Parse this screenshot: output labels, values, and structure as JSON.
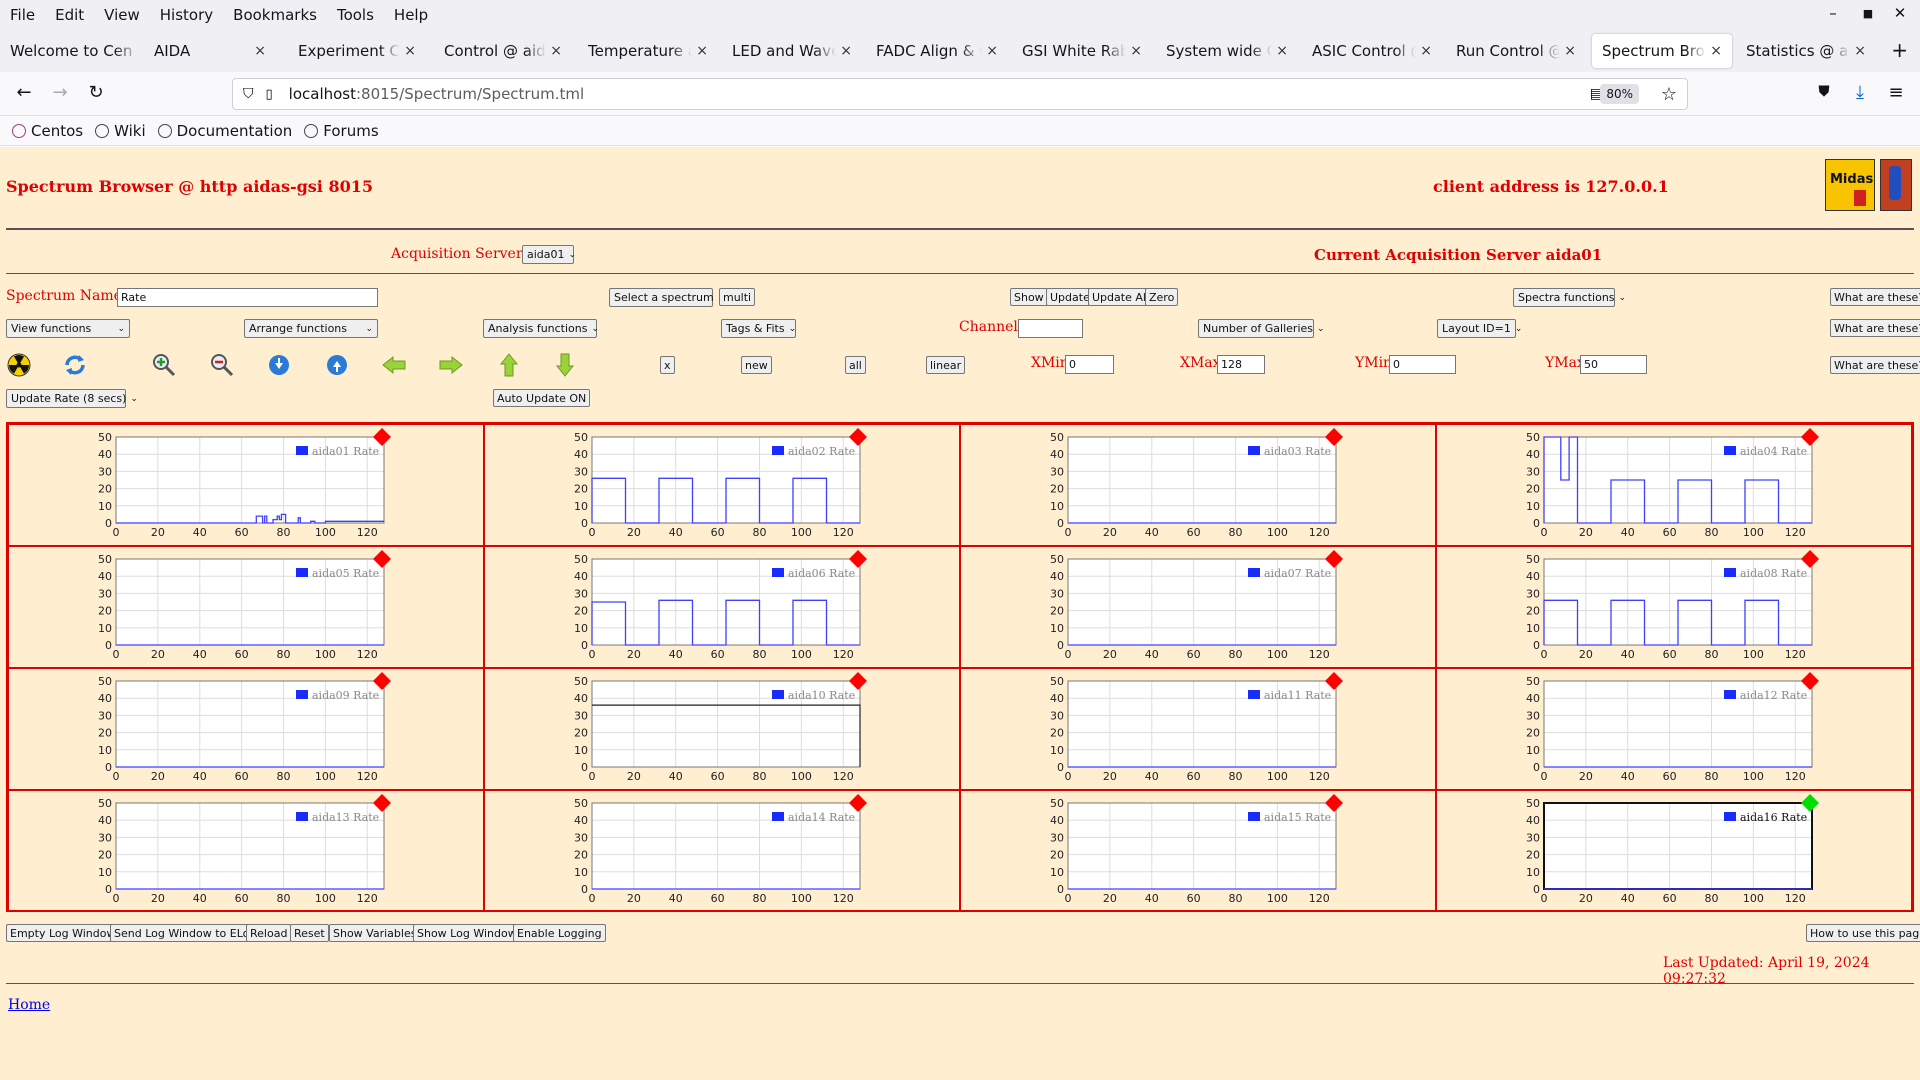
{
  "menubar": {
    "items": [
      "File",
      "Edit",
      "View",
      "History",
      "Bookmarks",
      "Tools",
      "Help"
    ]
  },
  "tabs": [
    {
      "label": "Welcome to Cen",
      "close": ""
    },
    {
      "label": "AIDA",
      "close": "×"
    },
    {
      "label": "Experiment Cont",
      "close": "×"
    },
    {
      "label": "Control @ aidas",
      "close": "×"
    },
    {
      "label": "Temperature and",
      "close": "×"
    },
    {
      "label": "LED and Wavefor",
      "close": "×"
    },
    {
      "label": "FADC Align & Co",
      "close": "×"
    },
    {
      "label": "GSI White Rabbit",
      "close": "×"
    },
    {
      "label": "System wide Che",
      "close": "×"
    },
    {
      "label": "ASIC Control @ a",
      "close": "×"
    },
    {
      "label": "Run Control @ ai",
      "close": "×"
    },
    {
      "label": "Spectrum Brows",
      "close": "×"
    },
    {
      "label": "Statistics @ aida",
      "close": "×"
    }
  ],
  "url": {
    "host": "localhost",
    "rest": ":8015/Spectrum/Spectrum.tml",
    "zoom": "80%"
  },
  "bookmarks": [
    "Centos",
    "Wiki",
    "Documentation",
    "Forums"
  ],
  "page": {
    "title": "Spectrum Browser @ http aidas-gsi 8015",
    "client_address": "client address is 127.0.0.1",
    "logo_text": "Midas",
    "acq_servers_label": "Acquisition Servers",
    "acq_server_selected": "aida01",
    "current_server": "Current Acquisition Server aida01",
    "spectrum_name_label": "Spectrum Name:",
    "spectrum_name_value": "Rate",
    "select_spectrum": "Select a spectrum",
    "multi": "multi",
    "show": "Show",
    "update": "Update",
    "update_all": "Update All",
    "zero": "Zero",
    "spectra_functions": "Spectra functions",
    "what_are_these": "What are these?",
    "view_functions": "View functions",
    "arrange_functions": "Arrange functions",
    "analysis_functions": "Analysis functions",
    "tags_fits": "Tags & Fits",
    "channel_label": "Channel:",
    "channel_value": "",
    "number_of_galleries": "Number of Galleries",
    "layout_id": "Layout ID=1",
    "x_btn": "x",
    "new_btn": "new",
    "all_btn": "all",
    "linear_btn": "linear",
    "xmin_label": "XMin",
    "xmin_value": "0",
    "xmax_label": "XMax",
    "xmax_value": "128",
    "ymin_label": "YMin",
    "ymin_value": "0",
    "ymax_label": "YMax",
    "ymax_value": "50",
    "update_rate": "Update Rate (8 secs)",
    "auto_update": "Auto Update ON",
    "bottom_buttons": [
      "Empty Log Window",
      "Send Log Window to ELog",
      "Reload",
      "Reset",
      "Show Variables",
      "Show Log Window",
      "Enable Logging"
    ],
    "how_to_use": "How to use this page",
    "last_updated": "Last Updated: April 19, 2024 09:27:32",
    "home_link": "Home"
  },
  "colors": {
    "page_bg": "#ffeed0",
    "red": "#e00000",
    "plot_line": "#4040ff",
    "marker_red": "#ff0000",
    "marker_green": "#00dd00"
  },
  "chart_data": {
    "type": "line",
    "xlim": [
      0,
      128
    ],
    "ylim": [
      0,
      50
    ],
    "xticks": [
      0,
      20,
      40,
      60,
      80,
      100,
      120
    ],
    "yticks": [
      0,
      10,
      20,
      30,
      40,
      50
    ],
    "grid": true,
    "legend": "top-right",
    "panels": [
      {
        "name": "aida01 Rate",
        "status": "red",
        "x": [
          0,
          67,
          67,
          70,
          70,
          71,
          71,
          72,
          72,
          75,
          75,
          77,
          77,
          78,
          78,
          79,
          79,
          81,
          81,
          87,
          87,
          88,
          88,
          93,
          93,
          95,
          95,
          100,
          100,
          128
        ],
        "y": [
          0,
          0,
          4,
          4,
          0,
          0,
          4,
          4,
          0,
          0,
          2,
          2,
          4,
          4,
          2,
          2,
          5,
          5,
          0,
          0,
          3,
          3,
          0,
          0,
          1,
          1,
          0,
          0,
          1,
          1
        ]
      },
      {
        "name": "aida02 Rate",
        "status": "red",
        "x": [
          0,
          0,
          16,
          16,
          32,
          32,
          48,
          48,
          64,
          64,
          80,
          80,
          96,
          96,
          112,
          112,
          128
        ],
        "y": [
          0,
          26,
          26,
          0,
          0,
          26,
          26,
          0,
          0,
          26,
          26,
          0,
          0,
          26,
          26,
          0,
          0
        ]
      },
      {
        "name": "aida03 Rate",
        "status": "red",
        "x": [
          0,
          128
        ],
        "y": [
          0,
          0
        ]
      },
      {
        "name": "aida04 Rate",
        "status": "red",
        "x": [
          0,
          0,
          8,
          8,
          12,
          12,
          16,
          16,
          32,
          32,
          48,
          48,
          64,
          64,
          80,
          80,
          96,
          96,
          112,
          112,
          128
        ],
        "y": [
          0,
          50,
          50,
          25,
          25,
          50,
          50,
          0,
          0,
          25,
          25,
          0,
          0,
          25,
          25,
          0,
          0,
          25,
          25,
          0,
          0
        ]
      },
      {
        "name": "aida05 Rate",
        "status": "red",
        "x": [
          0,
          128
        ],
        "y": [
          0,
          0
        ]
      },
      {
        "name": "aida06 Rate",
        "status": "red",
        "x": [
          0,
          0,
          16,
          16,
          32,
          32,
          48,
          48,
          64,
          64,
          80,
          80,
          96,
          96,
          112,
          112,
          128
        ],
        "y": [
          0,
          25,
          25,
          0,
          0,
          26,
          26,
          0,
          0,
          26,
          26,
          0,
          0,
          26,
          26,
          0,
          0
        ]
      },
      {
        "name": "aida07 Rate",
        "status": "red",
        "x": [
          0,
          128
        ],
        "y": [
          0,
          0
        ]
      },
      {
        "name": "aida08 Rate",
        "status": "red",
        "x": [
          0,
          0,
          16,
          16,
          32,
          32,
          48,
          48,
          64,
          64,
          80,
          80,
          96,
          96,
          112,
          112,
          128
        ],
        "y": [
          0,
          26,
          26,
          0,
          0,
          26,
          26,
          0,
          0,
          26,
          26,
          0,
          0,
          26,
          26,
          0,
          0
        ]
      },
      {
        "name": "aida09 Rate",
        "status": "red",
        "x": [
          0,
          128
        ],
        "y": [
          0,
          0
        ]
      },
      {
        "name": "aida10 Rate",
        "status": "red",
        "x": [
          0,
          128,
          128
        ],
        "y": [
          36,
          36,
          0
        ],
        "dark": true
      },
      {
        "name": "aida11 Rate",
        "status": "red",
        "x": [
          0,
          128
        ],
        "y": [
          0,
          0
        ]
      },
      {
        "name": "aida12 Rate",
        "status": "red",
        "x": [
          0,
          128
        ],
        "y": [
          0,
          0
        ]
      },
      {
        "name": "aida13 Rate",
        "status": "red",
        "x": [
          0,
          128
        ],
        "y": [
          0,
          0
        ]
      },
      {
        "name": "aida14 Rate",
        "status": "red",
        "x": [
          0,
          128
        ],
        "y": [
          0,
          0
        ]
      },
      {
        "name": "aida15 Rate",
        "status": "red",
        "x": [
          0,
          128
        ],
        "y": [
          0,
          0
        ]
      },
      {
        "name": "aida16 Rate",
        "status": "green",
        "x": [
          0,
          128
        ],
        "y": [
          0,
          0
        ],
        "selected": true
      }
    ]
  }
}
